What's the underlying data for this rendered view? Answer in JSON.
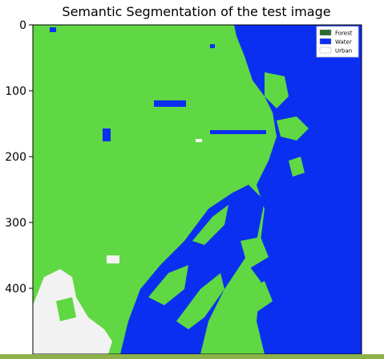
{
  "chart_data": {
    "type": "heatmap",
    "title": "Semantic Segmentation of the test image",
    "xlabel": "",
    "ylabel": "",
    "ylim": [
      0,
      500
    ],
    "yticks": [
      0,
      100,
      200,
      300,
      400
    ],
    "xticks": [
      0,
      100,
      200,
      300,
      400
    ],
    "legend": {
      "position": "top-right",
      "entries": [
        {
          "label": "Forest",
          "color": "#2d6a2d"
        },
        {
          "label": "Water",
          "color": "#0b2ff0"
        },
        {
          "label": "Urban",
          "color": "#ffffff"
        }
      ]
    },
    "classes": [
      {
        "name": "Forest",
        "color": "#5fd843"
      },
      {
        "name": "Water",
        "color": "#0b2ff0"
      },
      {
        "name": "Urban",
        "color": "#f2f2f2"
      }
    ]
  },
  "colors": {
    "forest_area": "#5fd843",
    "water_area": "#0b2ff0",
    "urban_area": "#f2f2f2",
    "accent_bar": "#8db24b"
  }
}
